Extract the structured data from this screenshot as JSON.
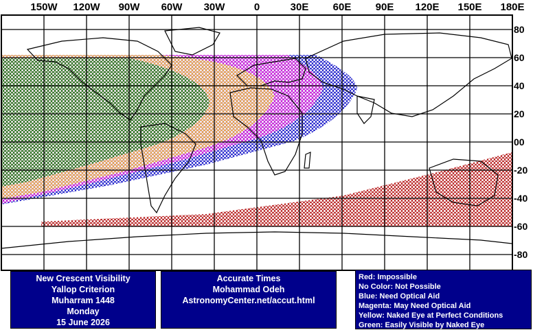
{
  "map": {
    "lon_labels": [
      "150W",
      "120W",
      "90W",
      "60W",
      "30W",
      "0",
      "30E",
      "60E",
      "90E",
      "120E",
      "150E",
      "180E"
    ],
    "lat_labels": [
      "80",
      "60",
      "40",
      "20",
      "00",
      "-20",
      "-40",
      "-60",
      "-80"
    ],
    "zone_colors": {
      "green": "#1e7a1e",
      "yellow": "#e8b040",
      "magenta": "#d81ad8",
      "blue": "#1414c8",
      "red": "#b41414"
    }
  },
  "info": {
    "title": "New Crescent Visibility",
    "criterion": "Yallop Criterion",
    "month": "Muharram 1448",
    "weekday": "Monday",
    "date": "15 June 2026"
  },
  "credits": {
    "line1": "Accurate Times",
    "line2": "Mohammad Odeh",
    "line3": "AstronomyCenter.net/accut.html"
  },
  "legend": [
    "Red: Impossible",
    "No Color: Not Possible",
    "Blue: Need Optical Aid",
    "Magenta: May Need Optical Aid",
    "Yellow: Naked Eye at Perfect Conditions",
    "Green: Easily Visible by Naked Eye"
  ]
}
